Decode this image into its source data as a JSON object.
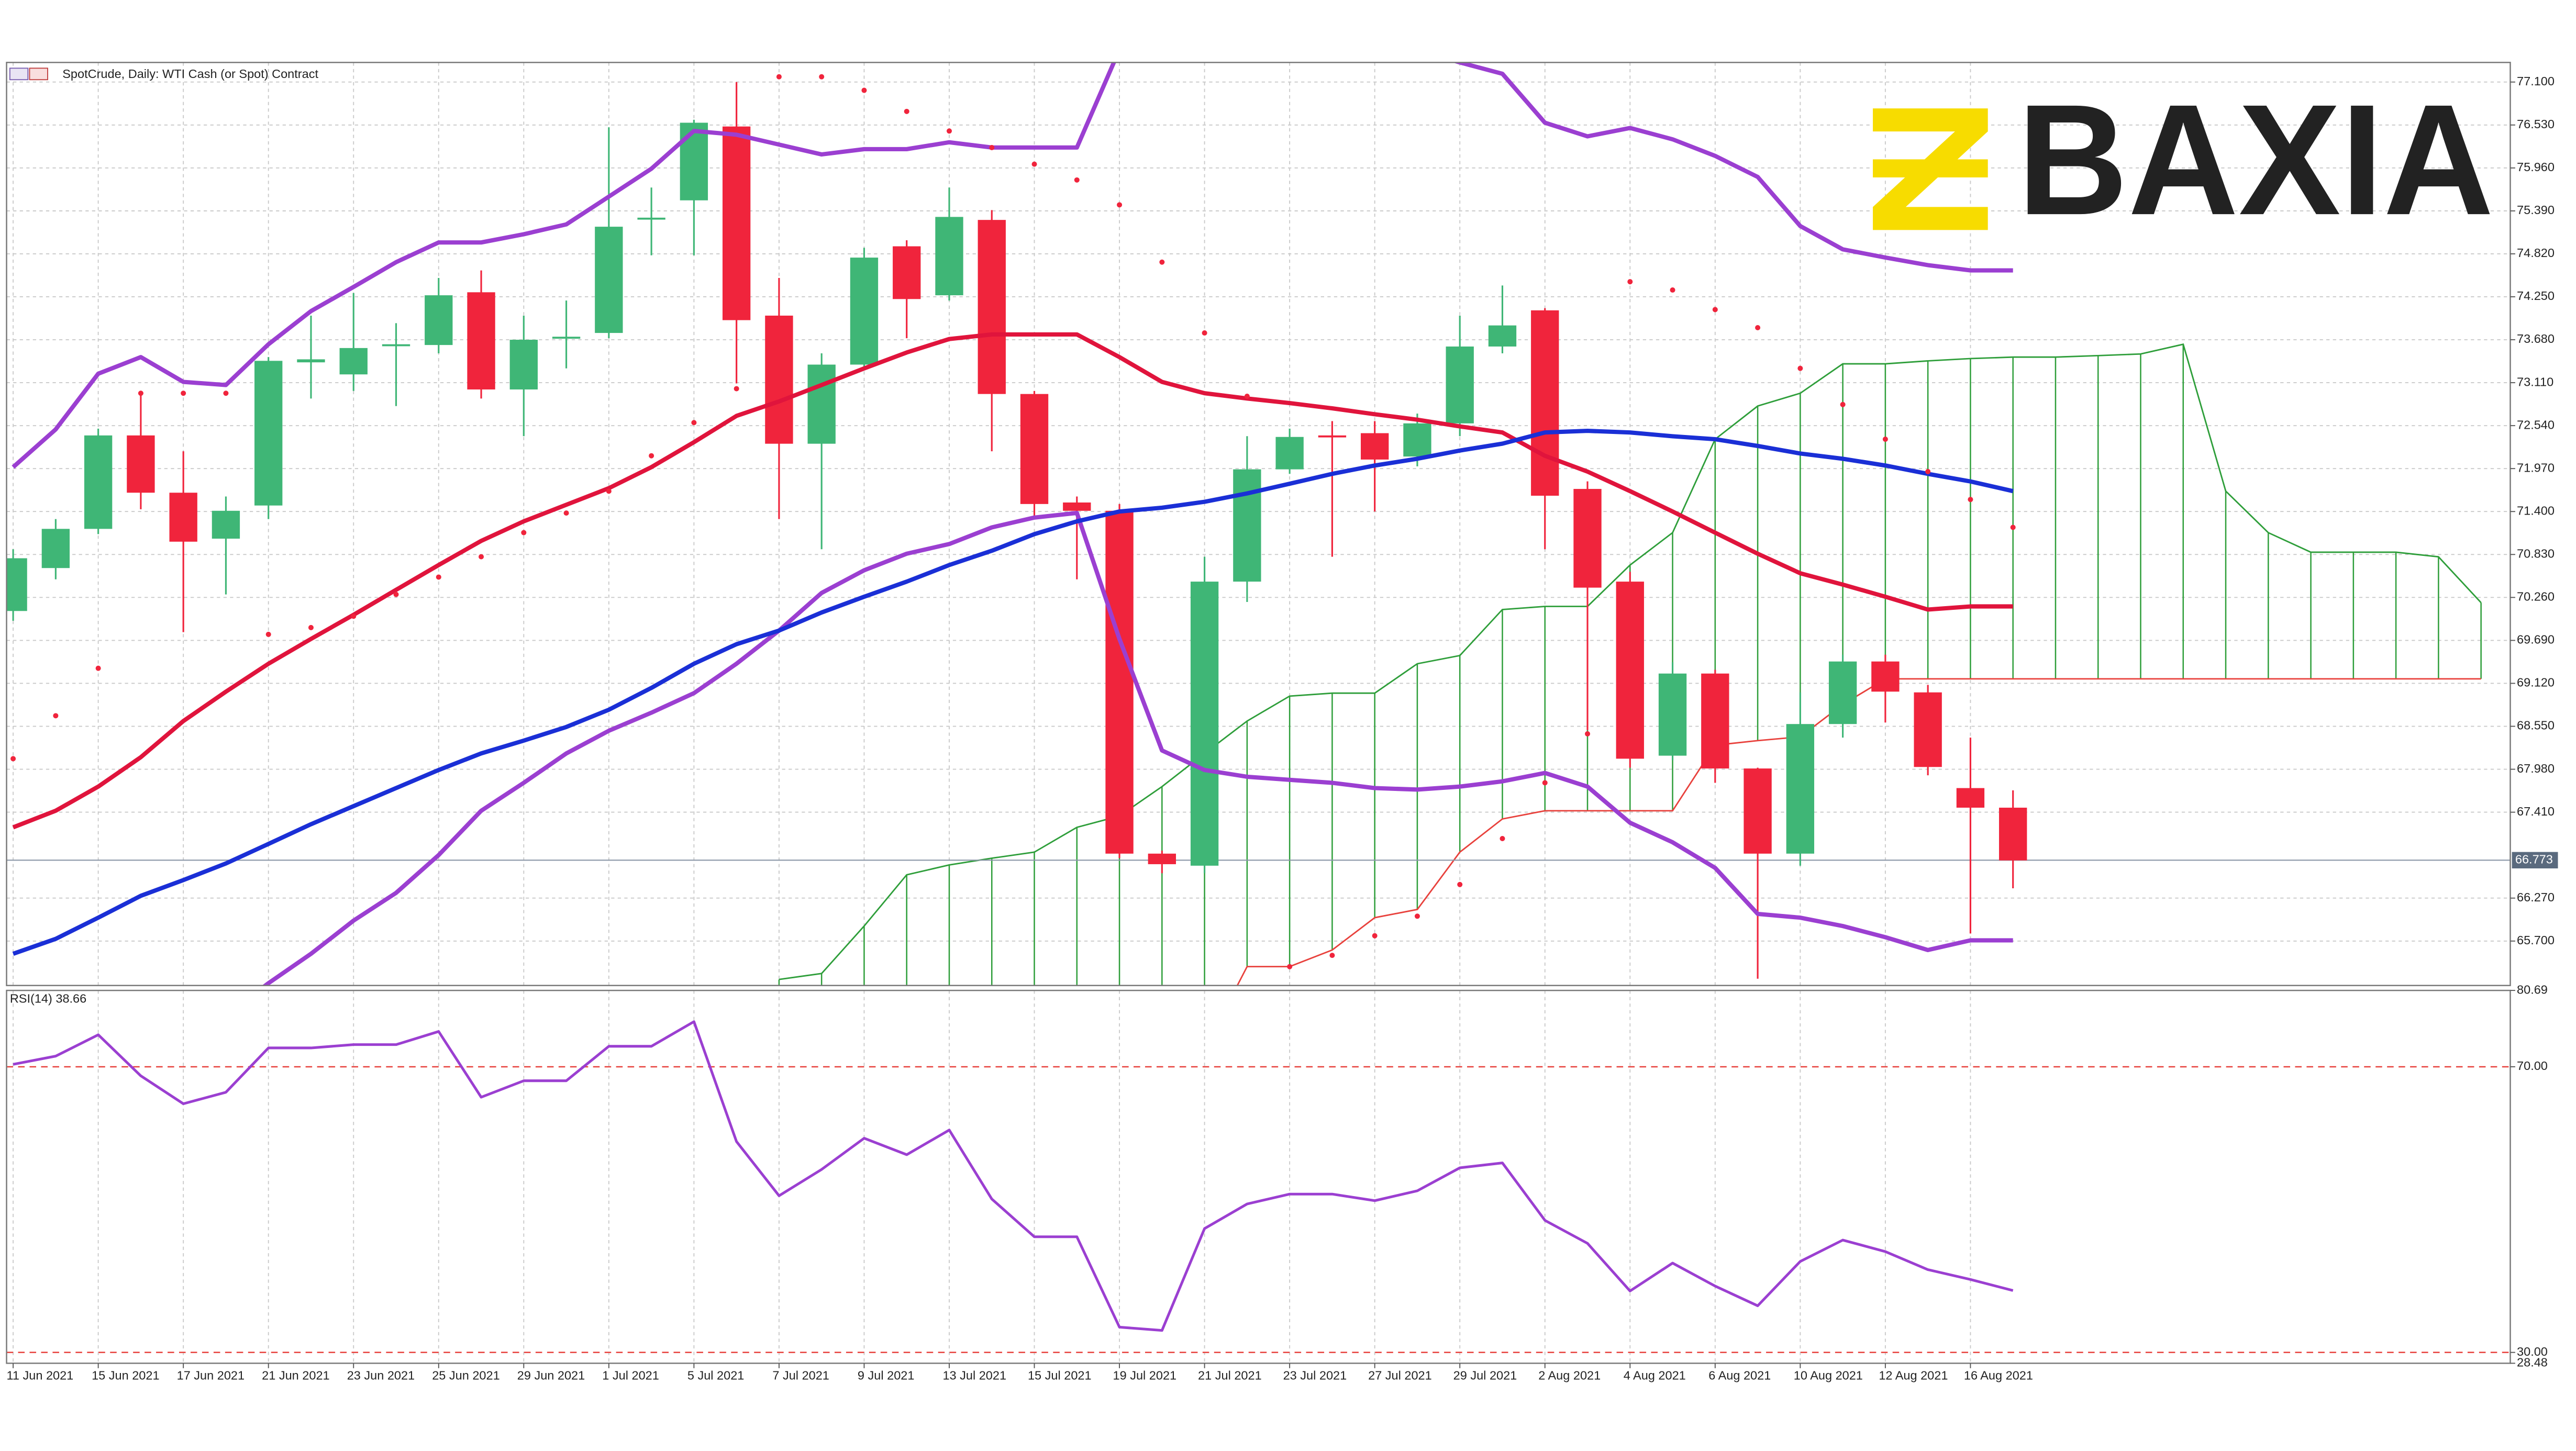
{
  "logo": {
    "text": "BAXIA",
    "color": "#f7dc00"
  },
  "chart_data": [
    {
      "type": "candlestick",
      "title": "SpotCrude, Daily:  WTI Cash (or Spot) Contract",
      "categories": [
        "11 Jun 2021",
        null,
        "15 Jun 2021",
        null,
        "17 Jun 2021",
        null,
        "21 Jun 2021",
        null,
        "23 Jun 2021",
        null,
        "25 Jun 2021",
        null,
        "29 Jun 2021",
        null,
        "1 Jul 2021",
        null,
        "5 Jul 2021",
        null,
        "7 Jul 2021",
        null,
        "9 Jul 2021",
        null,
        "13 Jul 2021",
        null,
        "15 Jul 2021",
        null,
        "19 Jul 2021",
        null,
        "21 Jul 2021",
        null,
        "23 Jul 2021",
        null,
        "27 Jul 2021",
        null,
        "29 Jul 2021",
        null,
        "2 Aug 2021",
        null,
        "4 Aug 2021",
        null,
        "6 Aug 2021",
        null,
        "10 Aug 2021",
        null,
        "12 Aug 2021",
        null,
        "16 Aug 2021",
        null,
        null,
        null,
        null,
        null,
        null,
        null,
        null,
        null,
        null,
        null,
        null
      ],
      "open": [
        70.08,
        70.65,
        71.17,
        72.41,
        71.65,
        71.04,
        71.48,
        73.38,
        73.22,
        73.6,
        73.61,
        74.31,
        73.02,
        73.7,
        73.77,
        75.28,
        75.53,
        76.51,
        74.0,
        72.3,
        73.35,
        74.92,
        74.27,
        75.27,
        72.96,
        71.52,
        71.41,
        66.86,
        66.7,
        70.47,
        71.96,
        72.41,
        72.44,
        72.13,
        72.57,
        73.59,
        74.07,
        71.7,
        70.47,
        68.16,
        69.25,
        67.99,
        66.86,
        68.58,
        69.41,
        69.0,
        67.73,
        67.47,
        null,
        null,
        null,
        null,
        null,
        null,
        null,
        null,
        null,
        null,
        null
      ],
      "high": [
        70.9,
        71.3,
        72.5,
        72.96,
        72.2,
        71.6,
        73.45,
        74.0,
        74.3,
        73.9,
        74.5,
        74.6,
        74.0,
        74.2,
        76.5,
        75.7,
        76.6,
        77.1,
        74.5,
        73.5,
        74.9,
        75.0,
        75.7,
        75.4,
        73.0,
        71.6,
        71.5,
        66.9,
        70.8,
        72.4,
        72.5,
        72.6,
        72.6,
        72.7,
        74.0,
        74.4,
        74.1,
        71.8,
        70.6,
        69.4,
        69.3,
        68.0,
        69.0,
        69.5,
        69.5,
        69.1,
        68.4,
        67.7,
        null,
        null,
        null,
        null,
        null,
        null,
        null,
        null,
        null,
        null,
        null
      ],
      "low": [
        69.95,
        70.5,
        71.1,
        71.43,
        69.8,
        70.3,
        71.3,
        72.9,
        73.0,
        72.8,
        73.5,
        72.9,
        72.4,
        73.3,
        73.7,
        74.8,
        74.8,
        73.1,
        71.3,
        70.9,
        73.3,
        73.7,
        74.2,
        72.2,
        71.3,
        70.5,
        66.8,
        66.6,
        66.6,
        70.2,
        71.9,
        70.8,
        71.4,
        72.0,
        72.4,
        73.5,
        70.9,
        68.5,
        68.0,
        68.1,
        67.8,
        65.2,
        66.7,
        68.4,
        68.6,
        67.9,
        65.8,
        66.4,
        null,
        null,
        null,
        null,
        null,
        null,
        null,
        null,
        null,
        null,
        null
      ],
      "close": [
        70.78,
        71.17,
        72.41,
        71.65,
        71.0,
        71.41,
        73.4,
        73.42,
        73.57,
        73.62,
        74.27,
        73.02,
        73.68,
        73.72,
        75.18,
        75.3,
        76.56,
        73.94,
        72.3,
        73.35,
        74.77,
        74.22,
        75.31,
        72.96,
        71.5,
        71.41,
        66.86,
        66.72,
        70.47,
        71.96,
        72.39,
        72.39,
        72.09,
        72.57,
        73.59,
        73.87,
        71.61,
        70.39,
        68.12,
        69.25,
        67.99,
        66.86,
        68.58,
        69.41,
        69.01,
        68.01,
        67.47,
        66.77,
        null,
        null,
        null,
        null,
        null,
        null,
        null,
        null,
        null,
        null,
        null
      ],
      "up_color": "#3fb676",
      "down_color": "#f0243c",
      "overlays": [
        {
          "color": "#9b3fd1",
          "values": [
            71.99,
            72.49,
            73.23,
            73.45,
            73.12,
            73.08,
            73.62,
            74.06,
            74.38,
            74.71,
            74.97,
            74.97,
            75.08,
            75.21,
            75.58,
            75.95,
            76.45,
            76.4,
            76.27,
            76.14,
            76.21,
            76.21,
            76.3,
            76.23,
            76.23,
            76.23,
            77.53,
            77.75,
            77.86,
            77.86,
            77.75,
            77.71,
            77.64,
            77.53,
            77.36,
            77.21,
            76.56,
            76.38,
            76.49,
            76.34,
            76.12,
            75.84,
            75.19,
            74.88,
            74.77,
            74.67,
            74.6,
            74.6,
            null,
            null,
            null,
            null,
            null,
            null,
            null,
            null,
            null,
            null,
            null
          ]
        },
        {
          "color": "#9b3fd1",
          "values": [
            63.19,
            63.4,
            63.62,
            63.95,
            64.27,
            64.71,
            65.14,
            65.53,
            65.97,
            66.34,
            66.84,
            67.43,
            67.8,
            68.19,
            68.49,
            68.73,
            68.99,
            69.38,
            69.82,
            70.32,
            70.62,
            70.84,
            70.97,
            71.19,
            71.32,
            71.38,
            69.71,
            68.23,
            67.97,
            67.88,
            67.84,
            67.8,
            67.73,
            67.71,
            67.75,
            67.82,
            67.93,
            67.75,
            67.27,
            67.01,
            66.67,
            66.06,
            66.01,
            65.9,
            65.75,
            65.58,
            65.71,
            65.71,
            null,
            null,
            null,
            null,
            null,
            null,
            null,
            null,
            null,
            null,
            null
          ]
        },
        {
          "color": "#e0143c",
          "values": [
            67.21,
            67.43,
            67.75,
            68.14,
            68.62,
            69.01,
            69.38,
            69.71,
            70.03,
            70.36,
            70.69,
            71.01,
            71.27,
            71.49,
            71.71,
            71.99,
            72.32,
            72.67,
            72.86,
            73.08,
            73.3,
            73.51,
            73.69,
            73.75,
            73.75,
            73.75,
            73.45,
            73.12,
            72.97,
            72.9,
            72.84,
            72.77,
            72.69,
            72.62,
            72.53,
            72.45,
            72.14,
            71.93,
            71.67,
            71.4,
            71.12,
            70.84,
            70.58,
            70.43,
            70.27,
            70.1,
            70.14,
            70.14,
            null,
            null,
            null,
            null,
            null,
            null,
            null,
            null,
            null,
            null,
            null
          ]
        },
        {
          "color": "#1a2fd6",
          "values": [
            65.53,
            65.73,
            66.01,
            66.3,
            66.51,
            66.73,
            66.99,
            67.25,
            67.49,
            67.73,
            67.97,
            68.19,
            68.36,
            68.54,
            68.77,
            69.06,
            69.38,
            69.64,
            69.82,
            70.06,
            70.27,
            70.47,
            70.69,
            70.88,
            71.1,
            71.27,
            71.4,
            71.45,
            71.53,
            71.64,
            71.77,
            71.9,
            72.01,
            72.1,
            72.21,
            72.3,
            72.45,
            72.47,
            72.45,
            72.4,
            72.36,
            72.27,
            72.17,
            72.1,
            72.01,
            71.9,
            71.8,
            71.67,
            null,
            null,
            null,
            null,
            null,
            null,
            null,
            null,
            null,
            null,
            null
          ]
        }
      ],
      "sar": {
        "color": "#f0243c",
        "values": [
          68.12,
          68.69,
          69.32,
          72.97,
          72.97,
          72.97,
          69.77,
          69.86,
          70.01,
          70.3,
          70.53,
          70.8,
          71.12,
          71.38,
          71.67,
          72.14,
          72.58,
          73.03,
          77.17,
          77.17,
          76.99,
          76.71,
          76.45,
          76.23,
          76.01,
          75.8,
          75.47,
          74.71,
          73.77,
          72.93,
          65.36,
          65.51,
          65.77,
          66.03,
          66.45,
          67.06,
          67.8,
          68.45,
          74.45,
          74.34,
          74.08,
          73.84,
          73.3,
          72.82,
          72.36,
          71.93,
          71.56,
          71.19,
          null,
          null,
          null,
          null,
          null,
          null,
          null,
          null,
          null,
          null,
          null
        ]
      },
      "cloud": {
        "color": "#2e9e3a",
        "span_b_color": "#e8413c",
        "span_a": [
          null,
          null,
          null,
          null,
          null,
          null,
          null,
          null,
          null,
          null,
          null,
          null,
          null,
          null,
          null,
          null,
          null,
          null,
          65.19,
          65.27,
          65.9,
          66.58,
          66.71,
          66.8,
          66.88,
          67.21,
          67.36,
          67.75,
          68.19,
          68.62,
          68.95,
          68.99,
          68.99,
          69.38,
          69.49,
          70.1,
          70.14,
          70.14,
          70.69,
          71.12,
          72.36,
          72.8,
          72.97,
          73.36,
          73.36,
          73.4,
          73.43,
          73.45,
          73.45,
          73.47,
          73.49,
          73.62,
          71.67,
          71.12,
          70.86,
          70.86,
          70.86,
          70.8,
          70.19
        ],
        "span_b": [
          null,
          null,
          null,
          null,
          null,
          null,
          null,
          null,
          null,
          null,
          null,
          null,
          null,
          null,
          null,
          null,
          null,
          null,
          64.27,
          64.27,
          64.27,
          64.27,
          64.27,
          64.27,
          64.27,
          64.27,
          64.27,
          64.27,
          64.27,
          65.36,
          65.36,
          65.58,
          66.01,
          66.12,
          66.88,
          67.32,
          67.43,
          67.43,
          67.43,
          67.43,
          68.3,
          68.36,
          68.41,
          68.84,
          69.18,
          69.18,
          69.18,
          69.18,
          69.18,
          69.18,
          69.18,
          69.18,
          69.18,
          69.18,
          69.18,
          69.18,
          69.18,
          69.18,
          69.18
        ]
      },
      "last_price": 66.773,
      "last_color": "#5a6a7e",
      "ylim": [
        65.11,
        77.36
      ],
      "yticks": [
        {
          "value": 77.1,
          "label": "77.100"
        },
        {
          "value": 76.53,
          "label": "76.530"
        },
        {
          "value": 75.96,
          "label": "75.960"
        },
        {
          "value": 75.39,
          "label": "75.390"
        },
        {
          "value": 74.82,
          "label": "74.820"
        },
        {
          "value": 74.25,
          "label": "74.250"
        },
        {
          "value": 73.68,
          "label": "73.680"
        },
        {
          "value": 73.11,
          "label": "73.110"
        },
        {
          "value": 72.54,
          "label": "72.540"
        },
        {
          "value": 71.97,
          "label": "71.970"
        },
        {
          "value": 71.4,
          "label": "71.400"
        },
        {
          "value": 70.83,
          "label": "70.830"
        },
        {
          "value": 70.26,
          "label": "70.260"
        },
        {
          "value": 69.69,
          "label": "69.690"
        },
        {
          "value": 69.12,
          "label": "69.120"
        },
        {
          "value": 68.55,
          "label": "68.550"
        },
        {
          "value": 67.98,
          "label": "67.980"
        },
        {
          "value": 67.41,
          "label": "67.410"
        },
        {
          "value": 66.27,
          "label": "66.270"
        },
        {
          "value": 65.7,
          "label": "65.700"
        }
      ],
      "grid": true
    },
    {
      "type": "line",
      "label": "RSI(14) 38.66",
      "color": "#9b3fd1",
      "level_color": "#e8413c",
      "values": [
        70.34,
        71.49,
        74.48,
        68.73,
        64.82,
        66.43,
        72.64,
        72.64,
        73.1,
        73.1,
        74.94,
        65.74,
        68.04,
        68.04,
        72.87,
        72.87,
        76.32,
        59.53,
        51.94,
        55.62,
        59.99,
        57.69,
        61.14,
        51.48,
        46.19,
        46.19,
        33.54,
        33.08,
        47.34,
        50.79,
        52.17,
        52.17,
        51.25,
        52.63,
        55.85,
        56.54,
        48.49,
        45.27,
        38.6,
        42.51,
        39.29,
        36.53,
        42.74,
        45.73,
        44.12,
        41.59,
        40.21,
        38.66,
        null,
        null,
        null,
        null,
        null,
        null,
        null,
        null,
        null,
        null,
        null
      ],
      "ylim": [
        28.48,
        80.69
      ],
      "yticks": [
        80.69,
        {
          "value": 70,
          "label": "70.00"
        },
        {
          "value": 30,
          "label": "30.00"
        },
        28.48
      ],
      "grid": true
    }
  ]
}
